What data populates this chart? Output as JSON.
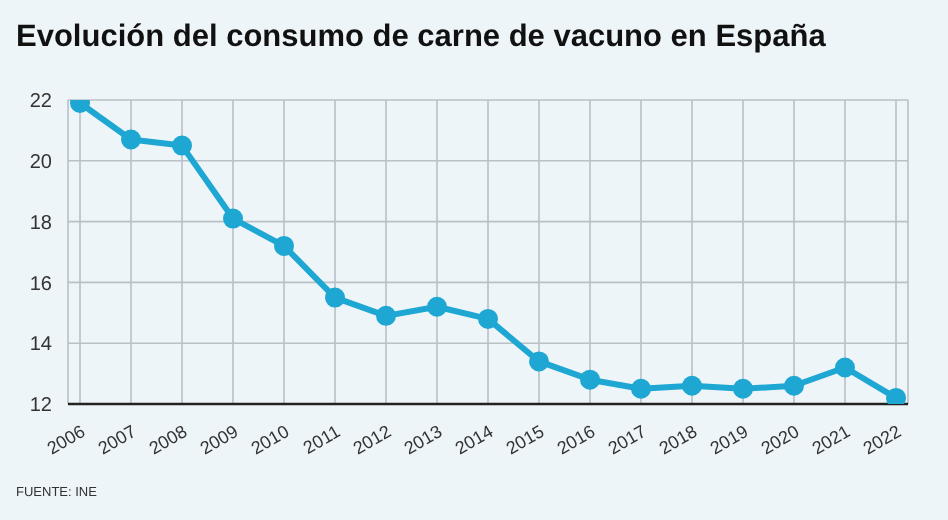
{
  "chart_data": {
    "type": "line",
    "title": "Evolución del consumo de carne de vacuno en España",
    "categories": [
      "2006",
      "2007",
      "2008",
      "2009",
      "2010",
      "2011",
      "2012",
      "2013",
      "2014",
      "2015",
      "2016",
      "2017",
      "2018",
      "2019",
      "2020",
      "2021",
      "2022"
    ],
    "series": [
      {
        "color": "#1ea7d2",
        "values": [
          21.9,
          20.7,
          20.5,
          18.1,
          17.2,
          15.5,
          14.9,
          15.2,
          14.8,
          13.4,
          12.8,
          12.5,
          12.6,
          12.5,
          12.6,
          13.2,
          12.2
        ]
      }
    ],
    "ylim": [
      12,
      22
    ],
    "yticks": [
      12,
      14,
      16,
      18,
      20,
      22
    ],
    "grid": true,
    "marker": "circle",
    "line_style": "solid",
    "annotations": [
      "FUENTE: INE"
    ]
  }
}
